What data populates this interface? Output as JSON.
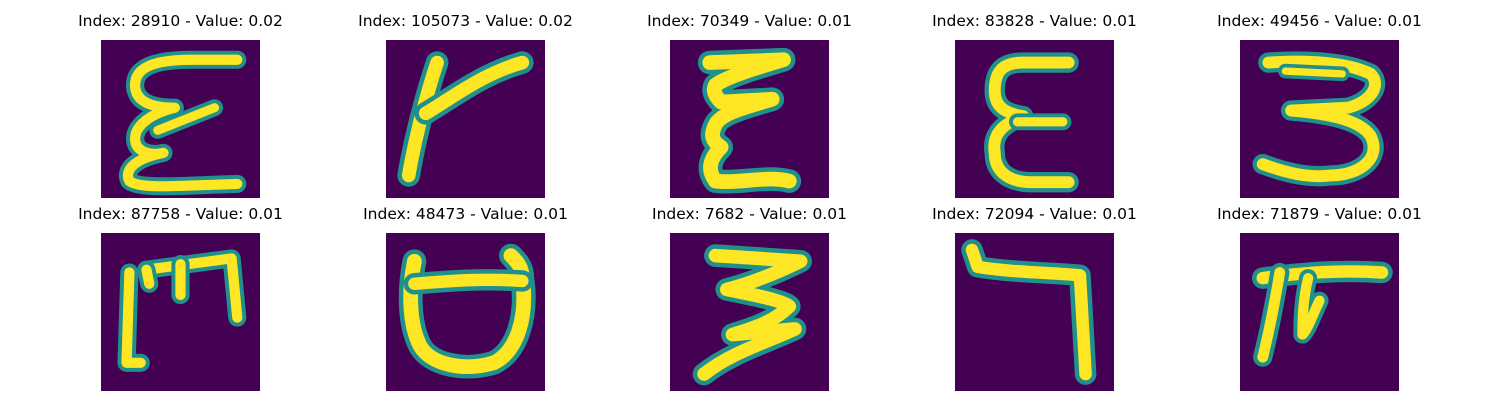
{
  "figure": {
    "panels": [
      {
        "title": "Index: 28910 - Value: 0.02",
        "glyph": "epsilon-like-handwritten-char"
      },
      {
        "title": "Index: 105073 - Value: 0.02",
        "glyph": "y-like-handwritten-char"
      },
      {
        "title": "Index: 70349 - Value: 0.01",
        "glyph": "epsilon-like-handwritten-char"
      },
      {
        "title": "Index: 83828 - Value: 0.01",
        "glyph": "epsilon-like-handwritten-char"
      },
      {
        "title": "Index: 49456 - Value: 0.01",
        "glyph": "three-like-handwritten-char"
      },
      {
        "title": "Index: 87758 - Value: 0.01",
        "glyph": "m-like-handwritten-char"
      },
      {
        "title": "Index: 48473 - Value: 0.01",
        "glyph": "cup-like-handwritten-char"
      },
      {
        "title": "Index: 7682 - Value: 0.01",
        "glyph": "three-like-handwritten-char"
      },
      {
        "title": "Index: 72094 - Value: 0.01",
        "glyph": "seven-like-handwritten-char"
      },
      {
        "title": "Index: 71879 - Value: 0.01",
        "glyph": "pi-like-handwritten-char"
      }
    ],
    "colors": {
      "background": "#440154",
      "edge": "#21908c",
      "stroke": "#fde725"
    }
  }
}
